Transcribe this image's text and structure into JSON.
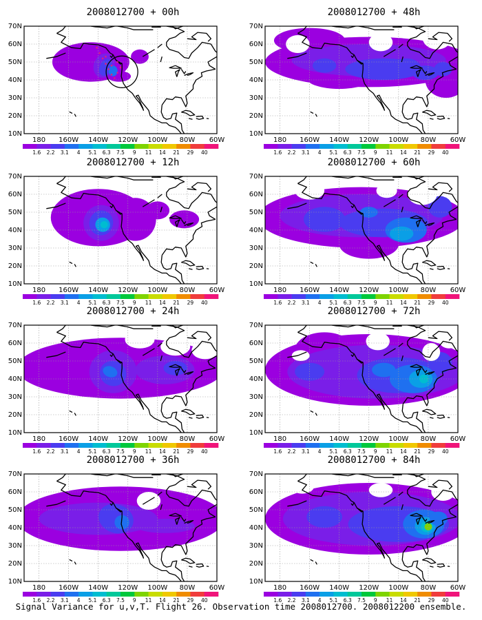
{
  "colorbar": {
    "labels": [
      "1.6",
      "2.2",
      "3.1",
      "4",
      "5.1",
      "6.3",
      "7.5",
      "9",
      "11",
      "14",
      "21",
      "29",
      "40"
    ],
    "colors": [
      "#9b00e0",
      "#7a1ee8",
      "#4a3cf0",
      "#1f70f0",
      "#0a9fe6",
      "#00bdd0",
      "#00c89a",
      "#00c83c",
      "#7ed400",
      "#c8dc00",
      "#f0c800",
      "#f08c00",
      "#f03c3c",
      "#f0147a"
    ]
  },
  "axes": {
    "lon_labels": [
      "180",
      "160W",
      "140W",
      "120W",
      "100W",
      "80W",
      "60W"
    ],
    "lat_labels": [
      "10N",
      "20N",
      "30N",
      "40N",
      "50N",
      "60N",
      "70N"
    ]
  },
  "panels": [
    {
      "title": "2008012700 + 00h"
    },
    {
      "title": "2008012700 + 48h"
    },
    {
      "title": "2008012700 + 12h"
    },
    {
      "title": "2008012700 + 60h"
    },
    {
      "title": "2008012700 + 24h"
    },
    {
      "title": "2008012700 + 72h"
    },
    {
      "title": "2008012700 + 36h"
    },
    {
      "title": "2008012700 + 84h"
    }
  ],
  "caption": "Signal Variance for u,v,T. Flight 26. Observation time 2008012700. 2008012200 ensemble."
}
